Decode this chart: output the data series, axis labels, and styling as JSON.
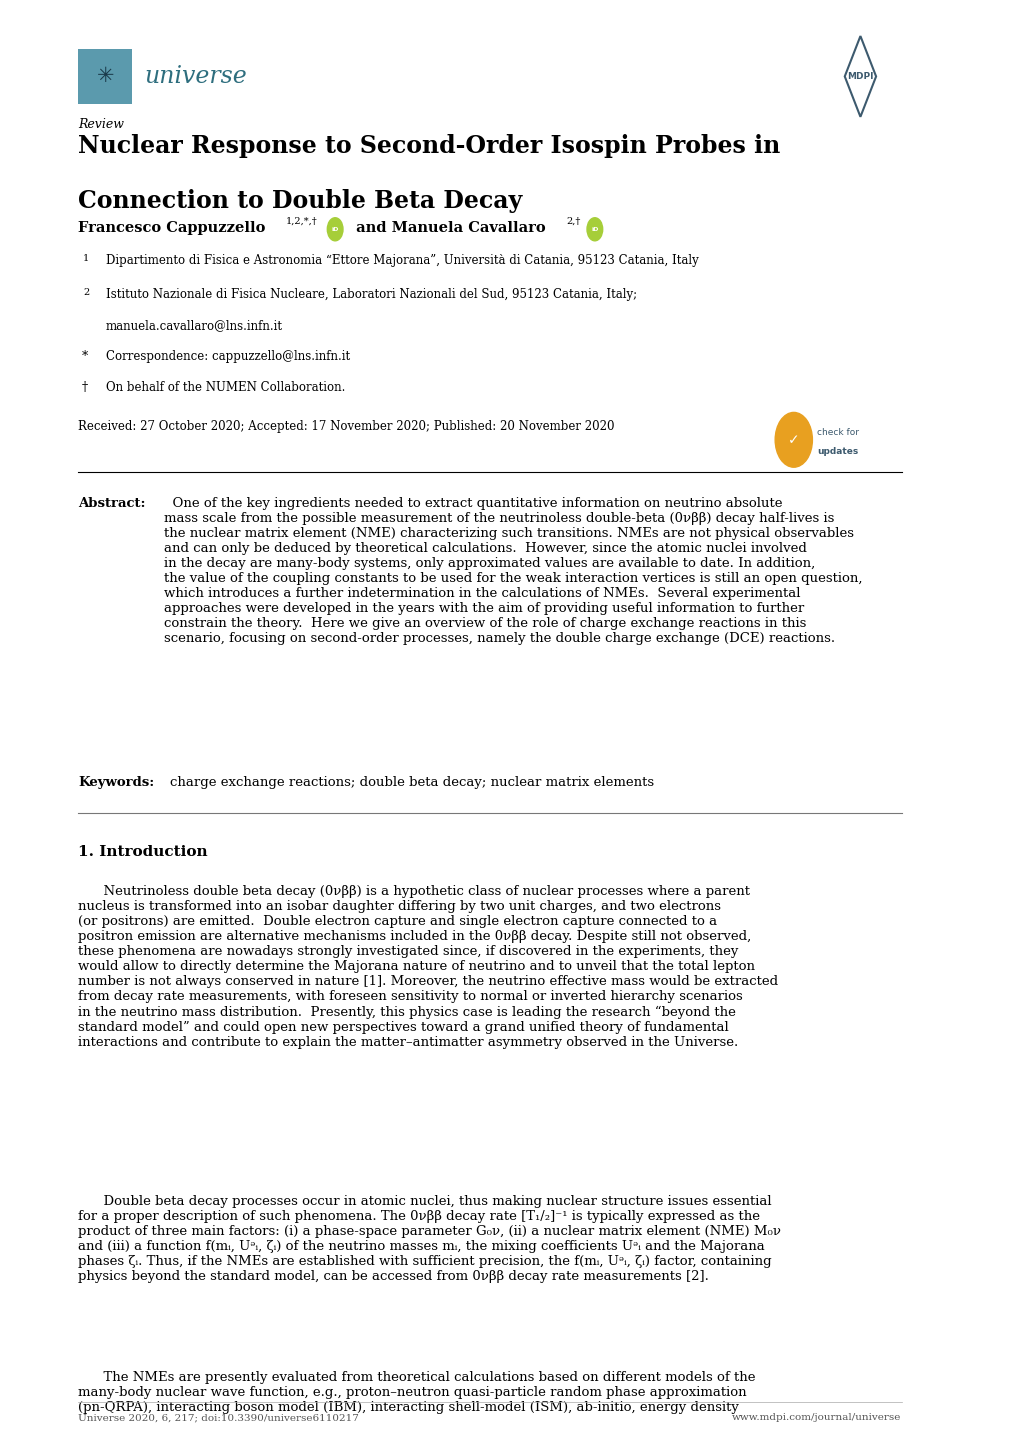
{
  "background_color": "#ffffff",
  "page_width": 10.2,
  "page_height": 14.42,
  "journal_name": "universe",
  "publisher": "MDPI",
  "article_type": "Review",
  "title_line1": "Nuclear Response to Second-Order Isospin Probes in",
  "title_line2": "Connection to Double Beta Decay",
  "affil1": "Dipartimento di Fisica e Astronomia “Ettore Majorana”, Università di Catania, 95123 Catania, Italy",
  "affil2": "Istituto Nazionale di Fisica Nucleare, Laboratori Nazionali del Sud, 95123 Catania, Italy;",
  "affil2b": "manuela.cavallaro@lns.infn.it",
  "corresp": "Correspondence: cappuzzello@lns.infn.it",
  "dagger": "On behalf of the NUMEN Collaboration.",
  "dates": "Received: 27 October 2020; Accepted: 17 November 2020; Published: 20 November 2020",
  "keywords_text": "charge exchange reactions; double beta decay; nuclear matrix elements",
  "section1_title": "1. Introduction",
  "footer_left": "Universe 2020, 6, 217; doi:10.3390/universe6110217",
  "footer_right": "www.mdpi.com/journal/universe",
  "text_color": "#000000",
  "teal_color": "#2e6e7e",
  "header_color": "#3d5a6e",
  "abstract_body": "  One of the key ingredients needed to extract quantitative information on neutrino absolute\nmass scale from the possible measurement of the neutrinoless double-beta (0νββ) decay half-lives is\nthe nuclear matrix element (NME) characterizing such transitions. NMEs are not physical observables\nand can only be deduced by theoretical calculations.  However, since the atomic nuclei involved\nin the decay are many-body systems, only approximated values are available to date. In addition,\nthe value of the coupling constants to be used for the weak interaction vertices is still an open question,\nwhich introduces a further indetermination in the calculations of NMEs.  Several experimental\napproaches were developed in the years with the aim of providing useful information to further\nconstrain the theory.  Here we give an overview of the role of charge exchange reactions in this\nscenario, focusing on second-order processes, namely the double charge exchange (DCE) reactions.",
  "p1_text": "      Neutrinoless double beta decay (0νββ) is a hypothetic class of nuclear processes where a parent\nnucleus is transformed into an isobar daughter differing by two unit charges, and two electrons\n(or positrons) are emitted.  Double electron capture and single electron capture connected to a\npositron emission are alternative mechanisms included in the 0νββ decay. Despite still not observed,\nthese phenomena are nowadays strongly investigated since, if discovered in the experiments, they\nwould allow to directly determine the Majorana nature of neutrino and to unveil that the total lepton\nnumber is not always conserved in nature [1]. Moreover, the neutrino effective mass would be extracted\nfrom decay rate measurements, with foreseen sensitivity to normal or inverted hierarchy scenarios\nin the neutrino mass distribution.  Presently, this physics case is leading the research “beyond the\nstandard model” and could open new perspectives toward a grand unified theory of fundamental\ninteractions and contribute to explain the matter–antimatter asymmetry observed in the Universe.",
  "p2_text": "      Double beta decay processes occur in atomic nuclei, thus making nuclear structure issues essential\nfor a proper description of such phenomena. The 0νββ decay rate [T₁/₂]⁻¹ is typically expressed as the\nproduct of three main factors: (i) a phase-space parameter G₀ν, (ii) a nuclear matrix element (NME) M₀ν\nand (iii) a function f(mᵢ, Uᵊᵢ, ζᵢ) of the neutrino masses mᵢ, the mixing coefficients Uᵊᵢ and the Majorana\nphases ζᵢ. Thus, if the NMEs are established with sufficient precision, the f(mᵢ, Uᵊᵢ, ζᵢ) factor, containing\nphysics beyond the standard model, can be accessed from 0νββ decay rate measurements [2].",
  "p3_text": "      The NMEs are presently evaluated from theoretical calculations based on different models of the\nmany-body nuclear wave function, e.g., proton–neutron quasi-particle random phase approximation\n(pn-QRPA), interacting boson model (IBM), interacting shell-model (ISM), ab-initio, energy density"
}
